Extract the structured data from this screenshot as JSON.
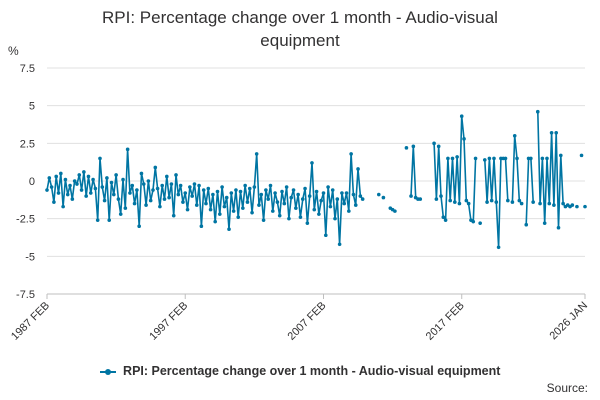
{
  "chart_data": {
    "type": "line",
    "title": "RPI: Percentage change over 1 month - Audio-visual equipment",
    "y_unit": "%",
    "ylim": [
      -7.5,
      7.5
    ],
    "y_ticks": [
      7.5,
      5,
      2.5,
      0,
      -2.5,
      -5,
      -7.5
    ],
    "x_range": [
      "1987 FEB",
      "2026 JAN"
    ],
    "x_ticks": [
      "1987 FEB",
      "1997 FEB",
      "2007 FEB",
      "2017 FEB",
      "2026 JAN"
    ],
    "grid": true,
    "legend_position": "bottom",
    "line_color": "#0075a3",
    "grid_color": "#e0e0e0",
    "series": [
      {
        "name": "RPI: Percentage change over 1 month - Audio-visual equipment",
        "points": [
          [
            "1987 FEB",
            -0.6
          ],
          [
            "1987 APR",
            0.2
          ],
          [
            "1987 JUN",
            -0.4
          ],
          [
            "1987 AUG",
            -1.4
          ],
          [
            "1987 OCT",
            0.3
          ],
          [
            "1987 DEC",
            -0.8
          ],
          [
            "1988 FEB",
            0.5
          ],
          [
            "1988 APR",
            -1.7
          ],
          [
            "1988 JUN",
            0.1
          ],
          [
            "1988 AUG",
            -0.9
          ],
          [
            "1988 OCT",
            -0.3
          ],
          [
            "1988 DEC",
            -1.2
          ],
          [
            "1989 FEB",
            0.0
          ],
          [
            "1989 APR",
            -0.2
          ],
          [
            "1989 JUN",
            0.4
          ],
          [
            "1989 AUG",
            -0.6
          ],
          [
            "1989 OCT",
            0.6
          ],
          [
            "1989 DEC",
            -1.0
          ],
          [
            "1990 FEB",
            0.3
          ],
          [
            "1990 APR",
            -0.8
          ],
          [
            "1990 JUN",
            0.1
          ],
          [
            "1990 AUG",
            -0.5
          ],
          [
            "1990 OCT",
            -2.6
          ],
          [
            "1990 DEC",
            1.5
          ],
          [
            "1991 FEB",
            -0.4
          ],
          [
            "1991 APR",
            -1.3
          ],
          [
            "1991 JUN",
            0.2
          ],
          [
            "1991 AUG",
            -2.6
          ],
          [
            "1991 OCT",
            -0.1
          ],
          [
            "1991 DEC",
            -0.9
          ],
          [
            "1992 FEB",
            0.4
          ],
          [
            "1992 APR",
            -1.2
          ],
          [
            "1992 JUN",
            -2.2
          ],
          [
            "1992 AUG",
            0.1
          ],
          [
            "1992 OCT",
            -1.8
          ],
          [
            "1992 DEC",
            2.1
          ],
          [
            "1993 FEB",
            -0.8
          ],
          [
            "1993 APR",
            -0.3
          ],
          [
            "1993 JUN",
            -1.5
          ],
          [
            "1993 AUG",
            -0.6
          ],
          [
            "1993 OCT",
            -3.0
          ],
          [
            "1993 DEC",
            0.5
          ],
          [
            "1994 FEB",
            -0.2
          ],
          [
            "1994 APR",
            -1.6
          ],
          [
            "1994 JUN",
            0.0
          ],
          [
            "1994 AUG",
            -1.3
          ],
          [
            "1994 OCT",
            -0.6
          ],
          [
            "1994 DEC",
            0.9
          ],
          [
            "1995 FEB",
            -0.5
          ],
          [
            "1995 APR",
            -1.7
          ],
          [
            "1995 JUN",
            -0.3
          ],
          [
            "1995 AUG",
            -1.2
          ],
          [
            "1995 OCT",
            0.3
          ],
          [
            "1995 DEC",
            -1.1
          ],
          [
            "1996 FEB",
            -0.2
          ],
          [
            "1996 APR",
            -2.3
          ],
          [
            "1996 JUN",
            0.4
          ],
          [
            "1996 AUG",
            -0.9
          ],
          [
            "1996 OCT",
            -0.3
          ],
          [
            "1996 DEC",
            -1.4
          ],
          [
            "1997 FEB",
            -0.8
          ],
          [
            "1997 APR",
            -1.9
          ],
          [
            "1997 JUN",
            -0.4
          ],
          [
            "1997 AUG",
            -1.0
          ],
          [
            "1997 OCT",
            -0.2
          ],
          [
            "1997 DEC",
            -1.6
          ],
          [
            "1998 FEB",
            -0.3
          ],
          [
            "1998 APR",
            -3.0
          ],
          [
            "1998 JUN",
            -0.6
          ],
          [
            "1998 AUG",
            -1.5
          ],
          [
            "1998 OCT",
            -0.5
          ],
          [
            "1998 DEC",
            -1.9
          ],
          [
            "1999 FEB",
            -0.9
          ],
          [
            "1999 APR",
            -2.7
          ],
          [
            "1999 JUN",
            -0.7
          ],
          [
            "1999 AUG",
            -2.2
          ],
          [
            "1999 OCT",
            -0.4
          ],
          [
            "1999 DEC",
            -1.7
          ],
          [
            "2000 FEB",
            -1.1
          ],
          [
            "2000 APR",
            -3.2
          ],
          [
            "2000 JUN",
            -0.8
          ],
          [
            "2000 AUG",
            -2.0
          ],
          [
            "2000 OCT",
            -0.6
          ],
          [
            "2000 DEC",
            -2.4
          ],
          [
            "2001 FEB",
            -0.7
          ],
          [
            "2001 APR",
            -1.8
          ],
          [
            "2001 JUN",
            -0.3
          ],
          [
            "2001 AUG",
            -1.4
          ],
          [
            "2001 OCT",
            -0.5
          ],
          [
            "2001 DEC",
            -2.1
          ],
          [
            "2002 FEB",
            -0.4
          ],
          [
            "2002 APR",
            1.8
          ],
          [
            "2002 JUN",
            -1.6
          ],
          [
            "2002 AUG",
            -0.9
          ],
          [
            "2002 OCT",
            -2.6
          ],
          [
            "2002 DEC",
            -0.6
          ],
          [
            "2003 FEB",
            -1.2
          ],
          [
            "2003 APR",
            -0.3
          ],
          [
            "2003 JUN",
            -2.0
          ],
          [
            "2003 AUG",
            -0.8
          ],
          [
            "2003 OCT",
            -1.4
          ],
          [
            "2003 DEC",
            -2.3
          ],
          [
            "2004 FEB",
            -0.7
          ],
          [
            "2004 APR",
            -1.5
          ],
          [
            "2004 JUN",
            -0.4
          ],
          [
            "2004 AUG",
            -2.5
          ],
          [
            "2004 OCT",
            -1.1
          ],
          [
            "2004 DEC",
            -0.6
          ],
          [
            "2005 FEB",
            -1.8
          ],
          [
            "2005 APR",
            -0.9
          ],
          [
            "2005 JUN",
            -2.4
          ],
          [
            "2005 AUG",
            -1.2
          ],
          [
            "2005 OCT",
            -0.5
          ],
          [
            "2005 DEC",
            -2.8
          ],
          [
            "2006 FEB",
            -1.0
          ],
          [
            "2006 APR",
            1.2
          ],
          [
            "2006 JUN",
            -1.9
          ],
          [
            "2006 AUG",
            -0.7
          ],
          [
            "2006 OCT",
            -2.2
          ],
          [
            "2006 DEC",
            -1.3
          ],
          [
            "2007 FEB",
            -0.8
          ],
          [
            "2007 APR",
            -3.6
          ],
          [
            "2007 JUN",
            -0.4
          ],
          [
            "2007 AUG",
            -1.7
          ],
          [
            "2007 OCT",
            -0.6
          ],
          [
            "2007 DEC",
            -2.5
          ],
          [
            "2008 FEB",
            -1.2
          ],
          [
            "2008 APR",
            -4.2
          ],
          [
            "2008 JUN",
            -0.8
          ],
          [
            "2008 AUG",
            -1.5
          ],
          [
            "2008 OCT",
            -0.8
          ],
          [
            "2008 DEC",
            -2.0
          ],
          [
            "2009 FEB",
            1.8
          ],
          [
            "2009 APR",
            -0.9
          ],
          [
            "2009 JUN",
            -1.6
          ],
          [
            "2009 AUG",
            0.8
          ],
          [
            "2009 OCT",
            -1.0
          ],
          [
            "2009 DEC",
            -1.2
          ],
          [
            "2011 FEB",
            -0.9
          ],
          [
            "2011 JUN",
            -1.1
          ],
          [
            "2011 DEC",
            -1.8
          ],
          [
            "2012 FEB",
            -1.9
          ],
          [
            "2012 APR",
            -2.0
          ],
          [
            "2013 FEB",
            2.2
          ],
          [
            "2013 JUN",
            -1.0
          ],
          [
            "2013 AUG",
            2.3
          ],
          [
            "2013 OCT",
            -1.1
          ],
          [
            "2013 DEC",
            -1.2
          ],
          [
            "2014 FEB",
            -1.2
          ],
          [
            "2015 FEB",
            2.5
          ],
          [
            "2015 APR",
            -1.2
          ],
          [
            "2015 JUN",
            2.3
          ],
          [
            "2015 AUG",
            -1.0
          ],
          [
            "2015 OCT",
            -2.4
          ],
          [
            "2015 DEC",
            -2.6
          ],
          [
            "2016 FEB",
            1.5
          ],
          [
            "2016 APR",
            -1.3
          ],
          [
            "2016 JUN",
            1.5
          ],
          [
            "2016 AUG",
            -1.4
          ],
          [
            "2016 OCT",
            1.6
          ],
          [
            "2016 DEC",
            -1.5
          ],
          [
            "2017 FEB",
            4.3
          ],
          [
            "2017 APR",
            2.8
          ],
          [
            "2017 JUN",
            -1.3
          ],
          [
            "2017 AUG",
            -1.5
          ],
          [
            "2017 OCT",
            -2.6
          ],
          [
            "2017 DEC",
            -2.7
          ],
          [
            "2018 FEB",
            1.5
          ],
          [
            "2018 JUN",
            -2.8
          ],
          [
            "2018 OCT",
            1.4
          ],
          [
            "2018 DEC",
            -1.4
          ],
          [
            "2019 FEB",
            1.5
          ],
          [
            "2019 APR",
            -1.3
          ],
          [
            "2019 JUN",
            1.5
          ],
          [
            "2019 AUG",
            -1.4
          ],
          [
            "2019 OCT",
            -4.4
          ],
          [
            "2019 DEC",
            1.5
          ],
          [
            "2020 FEB",
            1.5
          ],
          [
            "2020 APR",
            1.5
          ],
          [
            "2020 JUN",
            -1.3
          ],
          [
            "2020 OCT",
            -1.4
          ],
          [
            "2020 DEC",
            3.0
          ],
          [
            "2021 FEB",
            1.5
          ],
          [
            "2021 APR",
            -1.3
          ],
          [
            "2021 JUN",
            -1.5
          ],
          [
            "2021 OCT",
            -2.9
          ],
          [
            "2021 DEC",
            1.5
          ],
          [
            "2022 FEB",
            1.5
          ],
          [
            "2022 APR",
            -1.4
          ],
          [
            "2022 AUG",
            4.6
          ],
          [
            "2022 OCT",
            -1.5
          ],
          [
            "2022 DEC",
            1.5
          ],
          [
            "2023 FEB",
            -2.8
          ],
          [
            "2023 APR",
            1.5
          ],
          [
            "2023 JUN",
            -1.5
          ],
          [
            "2023 AUG",
            3.2
          ],
          [
            "2023 OCT",
            -1.6
          ],
          [
            "2023 DEC",
            3.2
          ],
          [
            "2024 FEB",
            -3.1
          ],
          [
            "2024 APR",
            1.7
          ],
          [
            "2024 JUN",
            -1.5
          ],
          [
            "2024 AUG",
            -1.7
          ],
          [
            "2024 OCT",
            -1.6
          ],
          [
            "2024 DEC",
            -1.7
          ],
          [
            "2025 FEB",
            -1.6
          ],
          [
            "2025 JUN",
            -1.7
          ],
          [
            "2025 OCT",
            1.7
          ],
          [
            "2026 JAN",
            -1.7
          ]
        ]
      }
    ]
  },
  "legend": {
    "label": "RPI: Percentage change over 1 month - Audio-visual equipment"
  },
  "source_label": "Source:"
}
